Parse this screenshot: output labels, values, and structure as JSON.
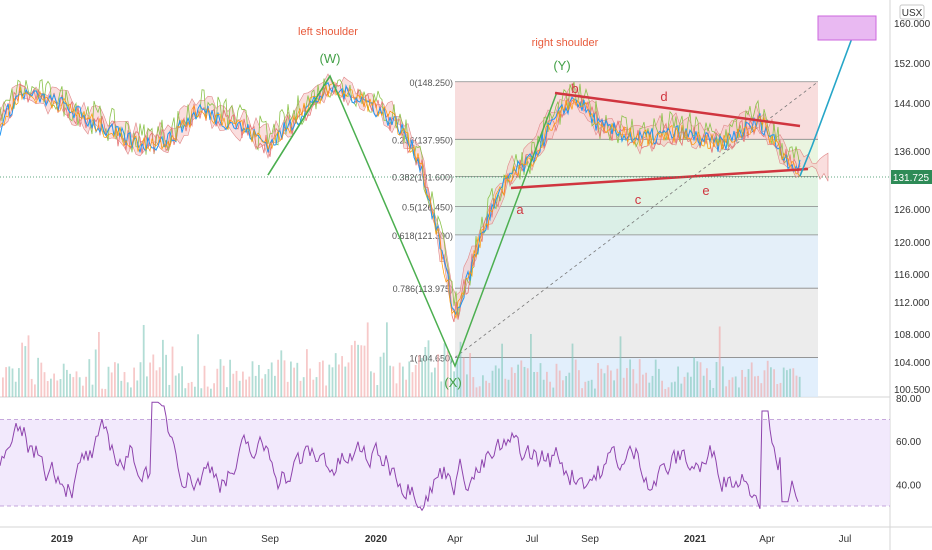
{
  "chart_data": {
    "type": "line",
    "currency": "USX",
    "last_price": "131.725",
    "price_axis": {
      "ticks": [
        160,
        152,
        144,
        136,
        126,
        120,
        116,
        112,
        108,
        104,
        100.5
      ],
      "tick_labels": [
        "160.000",
        "152.000",
        "144.000",
        "136.000",
        "126.000",
        "120.000",
        "116.000",
        "112.000",
        "108.000",
        "104.000",
        "100.500"
      ]
    },
    "rsi_axis": {
      "ticks": [
        80,
        60,
        40
      ],
      "tick_labels": [
        "80.00",
        "60.00",
        "40.00"
      ],
      "band": [
        30,
        70
      ]
    },
    "time_axis": {
      "tick_labels": [
        "2019",
        "Apr",
        "Jun",
        "Sep",
        "2020",
        "Apr",
        "Jul",
        "Sep",
        "2021",
        "Apr",
        "Jul"
      ],
      "bold": [
        "2019",
        "2020",
        "2021"
      ]
    },
    "fib_levels": [
      {
        "ratio": "0",
        "price": 148.25,
        "label": "0(148.250)",
        "fill": "#f6d1d1"
      },
      {
        "ratio": "0.236",
        "price": 137.95,
        "label": "0.236(137.950)",
        "fill": "#e3f1d6"
      },
      {
        "ratio": "0.382",
        "price": 131.6,
        "label": "0.382(131.600)",
        "fill": "#d7efd9"
      },
      {
        "ratio": "0.5",
        "price": 126.45,
        "label": "0.5(126.450)",
        "fill": "#cfeadf"
      },
      {
        "ratio": "0.618",
        "price": 121.3,
        "label": "0.618(121.300)",
        "fill": "#dbe9f7"
      },
      {
        "ratio": "0.786",
        "price": 113.975,
        "label": "0.786(113.975)",
        "fill": "#e5e5e5"
      },
      {
        "ratio": "1",
        "price": 104.65,
        "label": "1(104.650)",
        "fill": "#d8e9fb"
      }
    ],
    "annotations": {
      "left_shoulder": "left shoulder",
      "right_shoulder": "right shoulder",
      "wave_w": "(W)",
      "wave_x": "(X)",
      "wave_y": "(Y)",
      "wave_a": "a",
      "wave_b": "b",
      "wave_c": "c",
      "wave_d": "d",
      "wave_e": "e"
    },
    "colors": {
      "price_line": "#2196f3",
      "kumo_up": "#f6c2c2",
      "kumo_down": "#c9e6c5",
      "wave_green": "#4caf50",
      "triangle_red": "#d0353f",
      "target_arrow": "#26a6c8",
      "target_box": "#cc66dd",
      "rsi_line": "#8e44ad",
      "rsi_band": "#efe3fb",
      "last_price_tag": "#2e8b57"
    }
  }
}
